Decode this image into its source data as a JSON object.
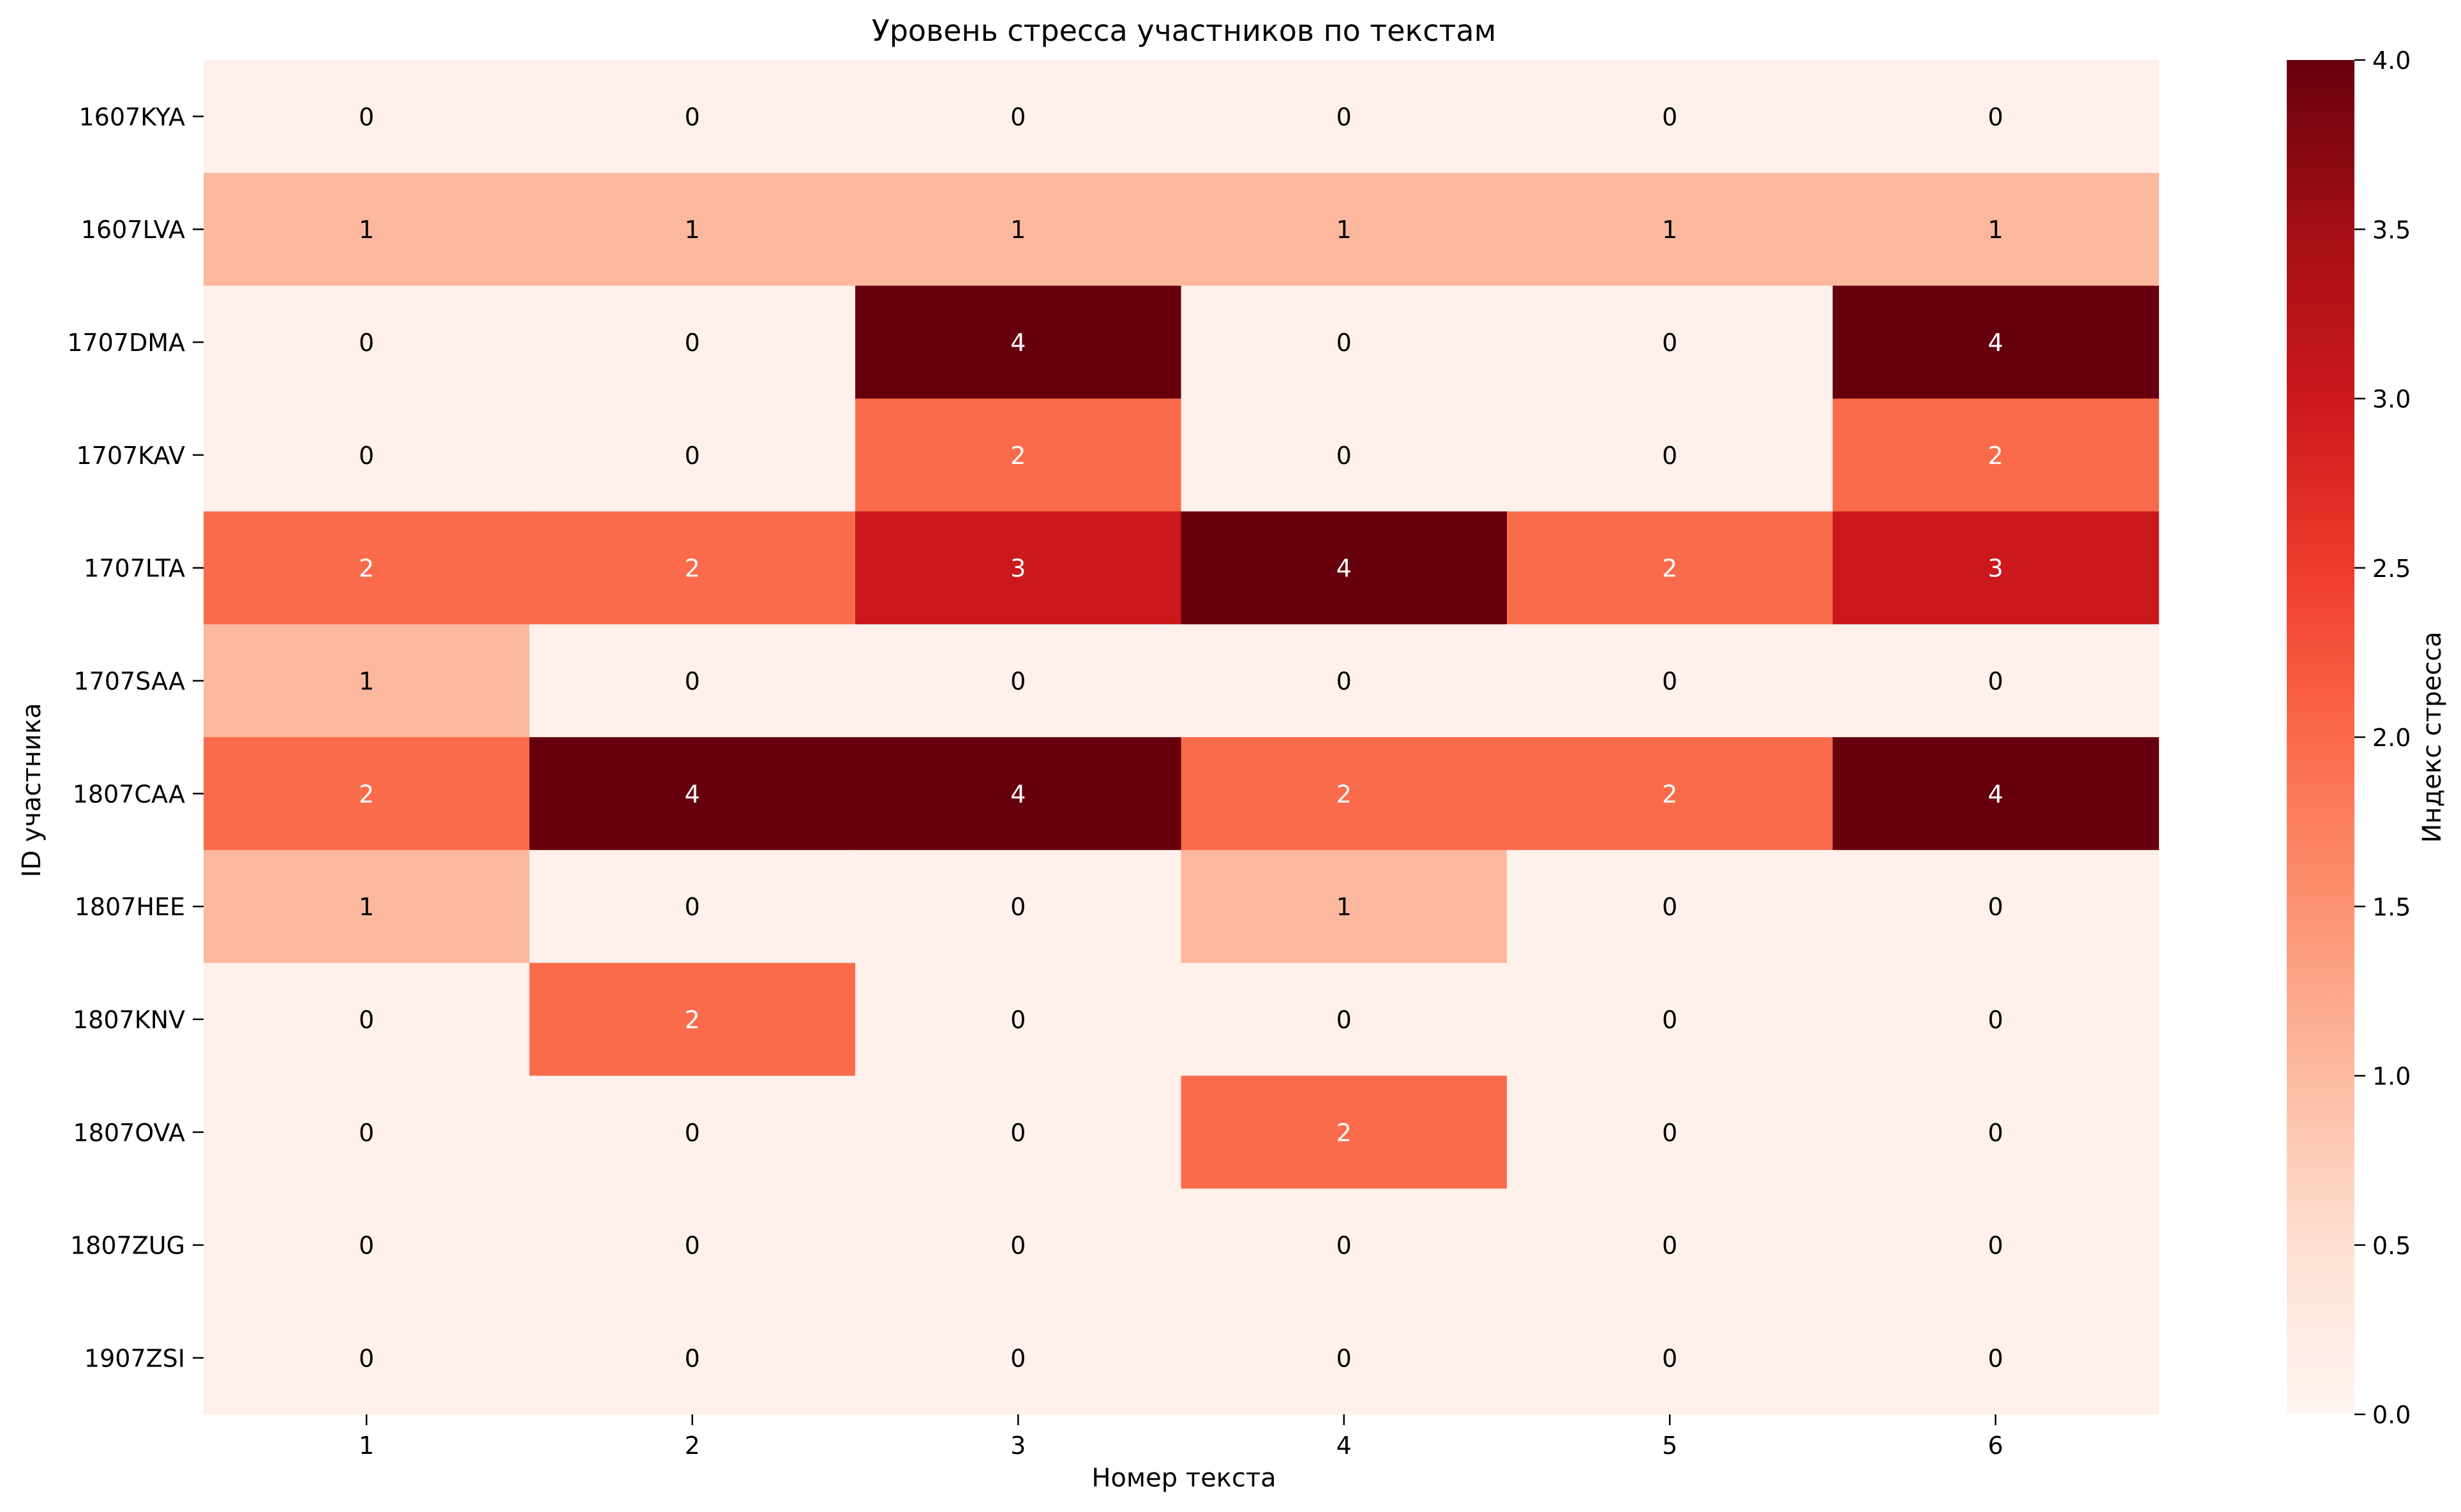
{
  "chart_data": {
    "type": "heatmap",
    "title": "Уровень стресса участников по текстам",
    "xlabel": "Номер текста",
    "ylabel": "ID участника",
    "x_categories": [
      "1",
      "2",
      "3",
      "4",
      "5",
      "6"
    ],
    "y_categories": [
      "1607KYA",
      "1607LVA",
      "1707DMA",
      "1707KAV",
      "1707LTA",
      "1707SAA",
      "1807CAA",
      "1807HEE",
      "1807KNV",
      "1807OVA",
      "1807ZUG",
      "1907ZSI"
    ],
    "values": [
      [
        0,
        0,
        0,
        0,
        0,
        0
      ],
      [
        1,
        1,
        1,
        1,
        1,
        1
      ],
      [
        0,
        0,
        4,
        0,
        0,
        4
      ],
      [
        0,
        0,
        2,
        0,
        0,
        2
      ],
      [
        2,
        2,
        3,
        4,
        2,
        3
      ],
      [
        1,
        0,
        0,
        0,
        0,
        0
      ],
      [
        2,
        4,
        4,
        2,
        2,
        4
      ],
      [
        1,
        0,
        0,
        1,
        0,
        0
      ],
      [
        0,
        2,
        0,
        0,
        0,
        0
      ],
      [
        0,
        0,
        0,
        2,
        0,
        0
      ],
      [
        0,
        0,
        0,
        0,
        0,
        0
      ],
      [
        0,
        0,
        0,
        0,
        0,
        0
      ]
    ],
    "colorbar": {
      "label": "Индекс стресса",
      "range": [
        0,
        4
      ],
      "ticks": [
        "0.0",
        "0.5",
        "1.0",
        "1.5",
        "2.0",
        "2.5",
        "3.0",
        "3.5",
        "4.0"
      ]
    },
    "colormap": "Reds",
    "cell_colors": {
      "0": "#fff0eb",
      "1": "#fcb89e",
      "2": "#fa6b4c",
      "3": "#cb181d",
      "4": "#67000d"
    },
    "annotation_colors": {
      "light": "#000000",
      "dark": "#ffffff"
    },
    "gradient_stops": [
      "#fff5f0",
      "#fee0d2",
      "#fcbba1",
      "#fc9272",
      "#fb6a4a",
      "#ef3b2c",
      "#cb181d",
      "#a50f15",
      "#67000d"
    ]
  }
}
